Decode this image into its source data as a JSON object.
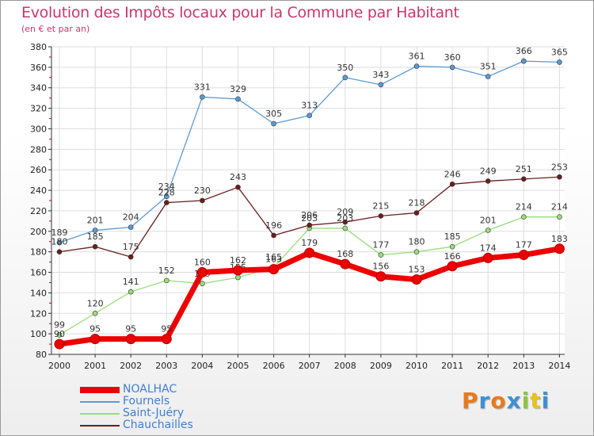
{
  "title": "Evolution des Impôts locaux pour la Commune par Habitant",
  "subtitle": "(en € et par an)",
  "logo": {
    "text": "Proxiti",
    "letters": [
      "P",
      "r",
      "o",
      "x",
      "i",
      "t",
      "i"
    ],
    "colors": [
      "#e87a1c",
      "#3d8fd6",
      "#e87a1c",
      "#3d8fd6",
      "#8cc63f",
      "#e8c21c",
      "#3d8fd6"
    ]
  },
  "colors": {
    "title": "#c8376b",
    "axis": "#333333",
    "grid": "#dddddd",
    "tick_red": "#cc0000"
  },
  "chart_data": {
    "type": "line",
    "title": "Evolution des Impôts locaux pour la Commune par Habitant",
    "subtitle": "(en € et par an)",
    "xlabel": "",
    "ylabel": "",
    "x": [
      "2000",
      "2001",
      "2002",
      "2003",
      "2004",
      "2005",
      "2006",
      "2007",
      "2008",
      "2009",
      "2010",
      "2011",
      "2012",
      "2013",
      "2014"
    ],
    "ylim": [
      80,
      380
    ],
    "yticks": [
      80,
      100,
      120,
      140,
      160,
      180,
      200,
      220,
      240,
      260,
      280,
      300,
      320,
      340,
      360,
      380
    ],
    "ytick_labels": [
      "80",
      "100",
      "120",
      "140",
      "160",
      "180",
      "200",
      "220",
      "240",
      "260",
      "280",
      "300",
      "320",
      "340",
      "360",
      "380"
    ],
    "grid": true,
    "legend_position": "bottom-left",
    "series": [
      {
        "name": "Fournels",
        "color": "#5b9bd5",
        "values": [
          189,
          201,
          204,
          234,
          331,
          329,
          305,
          313,
          350,
          343,
          361,
          360,
          351,
          366,
          365
        ],
        "labels": [
          "189",
          "201",
          "204",
          "234",
          "331",
          "329",
          "305",
          "313",
          "350",
          "343",
          "361",
          "360",
          "351",
          "366",
          "365"
        ]
      },
      {
        "name": "Saint-Juéry",
        "color": "#99dd77",
        "values": [
          99,
          120,
          141,
          152,
          149,
          155,
          165,
          203,
          203,
          177,
          180,
          185,
          201,
          214,
          214
        ],
        "labels": [
          "99",
          "120",
          "141",
          "152",
          "149",
          "155",
          "165",
          "203",
          "203",
          "177",
          "180",
          "185",
          "201",
          "214",
          "214"
        ]
      },
      {
        "name": "Chauchailles",
        "color": "#6b1e1e",
        "values": [
          180,
          185,
          175,
          228,
          230,
          243,
          196,
          206,
          209,
          215,
          218,
          246,
          249,
          251,
          253
        ],
        "labels": [
          "180",
          "185",
          "175",
          "228",
          "230",
          "243",
          "196",
          "206",
          "209",
          "215",
          "218",
          "246",
          "249",
          "251",
          "253"
        ]
      },
      {
        "name": "NOALHAC",
        "color": "#ee0000",
        "values": [
          90,
          95,
          95,
          95,
          160,
          162,
          163,
          179,
          168,
          156,
          153,
          166,
          174,
          177,
          183
        ],
        "labels": [
          "90",
          "95",
          "95",
          "95",
          "160",
          "162",
          "163",
          "179",
          "168",
          "156",
          "153",
          "166",
          "174",
          "177",
          "183"
        ]
      }
    ],
    "legend": [
      {
        "name": "NOALHAC",
        "color": "#ee0000"
      },
      {
        "name": "Fournels",
        "color": "#5b9bd5"
      },
      {
        "name": "Saint-Juéry",
        "color": "#99dd77"
      },
      {
        "name": "Chauchailles",
        "color": "#6b1e1e"
      }
    ]
  }
}
